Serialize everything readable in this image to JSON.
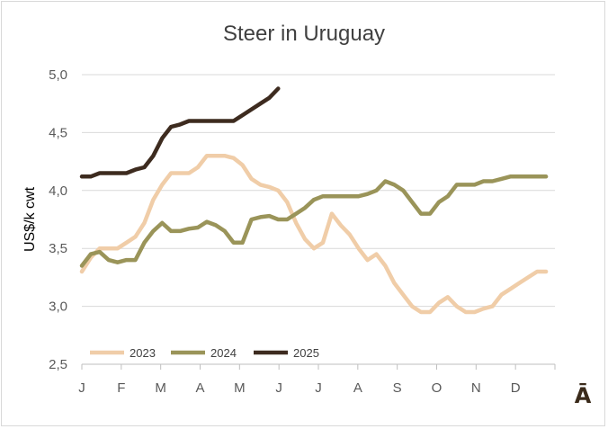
{
  "chart_data": {
    "type": "line",
    "title": "Steer in Uruguay",
    "ylabel": "US$/k cwt",
    "xlabel": "",
    "ylim": [
      2.5,
      5.0
    ],
    "yticks": [
      "5,0",
      "4,5",
      "4,0",
      "3,5",
      "3,0",
      "2,5"
    ],
    "xticks": [
      "J",
      "F",
      "M",
      "A",
      "M",
      "J",
      "J",
      "A",
      "S",
      "O",
      "N",
      "D"
    ],
    "x_unit": "week of year",
    "grid": "horizontal",
    "legend_position": "bottom-left",
    "series": [
      {
        "name": "2023",
        "color": "#f0cda8",
        "x": [
          0,
          1,
          2,
          3,
          4,
          5,
          6,
          7,
          8,
          9,
          10,
          11,
          12,
          13,
          14,
          15,
          16,
          17,
          18,
          19,
          20,
          21,
          22,
          23,
          24,
          25,
          26,
          27,
          28,
          29,
          30,
          31,
          32,
          33,
          34,
          35,
          36,
          37,
          38,
          39,
          40,
          41,
          42,
          43,
          44,
          45,
          46,
          47,
          48,
          49,
          50,
          51,
          52
        ],
        "values": [
          3.3,
          3.42,
          3.5,
          3.5,
          3.5,
          3.55,
          3.6,
          3.72,
          3.92,
          4.05,
          4.15,
          4.15,
          4.15,
          4.2,
          4.3,
          4.3,
          4.3,
          4.28,
          4.22,
          4.1,
          4.05,
          4.03,
          4.0,
          3.9,
          3.72,
          3.58,
          3.5,
          3.55,
          3.8,
          3.7,
          3.62,
          3.5,
          3.4,
          3.45,
          3.35,
          3.2,
          3.1,
          3.0,
          2.95,
          2.95,
          3.03,
          3.08,
          3.0,
          2.95,
          2.95,
          2.98,
          3.0,
          3.1,
          3.15,
          3.2,
          3.25,
          3.3,
          3.3
        ]
      },
      {
        "name": "2024",
        "color": "#9a9459",
        "x": [
          0,
          1,
          2,
          3,
          4,
          5,
          6,
          7,
          8,
          9,
          10,
          11,
          12,
          13,
          14,
          15,
          16,
          17,
          18,
          19,
          20,
          21,
          22,
          23,
          24,
          25,
          26,
          27,
          28,
          29,
          30,
          31,
          32,
          33,
          34,
          35,
          36,
          37,
          38,
          39,
          40,
          41,
          42,
          43,
          44,
          45,
          46,
          47,
          48,
          49,
          50,
          51,
          52
        ],
        "values": [
          3.35,
          3.45,
          3.47,
          3.4,
          3.38,
          3.4,
          3.4,
          3.55,
          3.65,
          3.72,
          3.65,
          3.65,
          3.67,
          3.68,
          3.73,
          3.7,
          3.65,
          3.55,
          3.55,
          3.75,
          3.77,
          3.78,
          3.75,
          3.75,
          3.8,
          3.85,
          3.92,
          3.95,
          3.95,
          3.95,
          3.95,
          3.95,
          3.97,
          4.0,
          4.08,
          4.05,
          4.0,
          3.9,
          3.8,
          3.8,
          3.9,
          3.95,
          4.05,
          4.05,
          4.05,
          4.08,
          4.08,
          4.1,
          4.12,
          4.12,
          4.12,
          4.12,
          4.12
        ]
      },
      {
        "name": "2025",
        "color": "#3d2b1f",
        "x": [
          0,
          1,
          2,
          3,
          4,
          5,
          6,
          7,
          8,
          9,
          10,
          11,
          12,
          13,
          14,
          15,
          16,
          17,
          18,
          19,
          20,
          21,
          22
        ],
        "values": [
          4.12,
          4.12,
          4.15,
          4.15,
          4.15,
          4.15,
          4.18,
          4.2,
          4.3,
          4.45,
          4.55,
          4.57,
          4.6,
          4.6,
          4.6,
          4.6,
          4.6,
          4.6,
          4.65,
          4.7,
          4.75,
          4.8,
          4.88
        ]
      }
    ]
  },
  "logo": {
    "glyph": "Ā"
  }
}
